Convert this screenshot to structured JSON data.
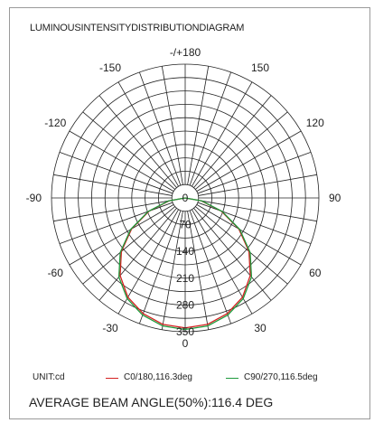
{
  "chart_data": {
    "type": "polar",
    "title": "LUMINOUSINTENSITYDISTRIBUTIONDIAGRAM",
    "unit_label": "UNIT:cd",
    "angle_ticks": [
      "-/+180",
      "150",
      "120",
      "90",
      "60",
      "30",
      "0",
      "-30",
      "-60",
      "-90",
      "-120",
      "-150"
    ],
    "radial_ticks": [
      "0",
      "70",
      "140",
      "210",
      "280",
      "350"
    ],
    "radial_max": 350,
    "angle_step_deg": 10,
    "series": [
      {
        "name": "C0/180,116.3deg",
        "color": "#d42020",
        "angles_deg": [
          0,
          10,
          20,
          30,
          40,
          50,
          60,
          70,
          80,
          90
        ],
        "values": [
          340,
          336,
          322,
          300,
          265,
          218,
          162,
          100,
          42,
          0
        ]
      },
      {
        "name": "C90/270,116.5deg",
        "color": "#1e9a3c",
        "angles_deg": [
          0,
          10,
          20,
          30,
          40,
          50,
          60,
          70,
          80,
          90
        ],
        "values": [
          344,
          340,
          326,
          304,
          270,
          222,
          165,
          103,
          44,
          0
        ]
      }
    ],
    "footer": "AVERAGE BEAM ANGLE(50%):116.4 DEG"
  }
}
